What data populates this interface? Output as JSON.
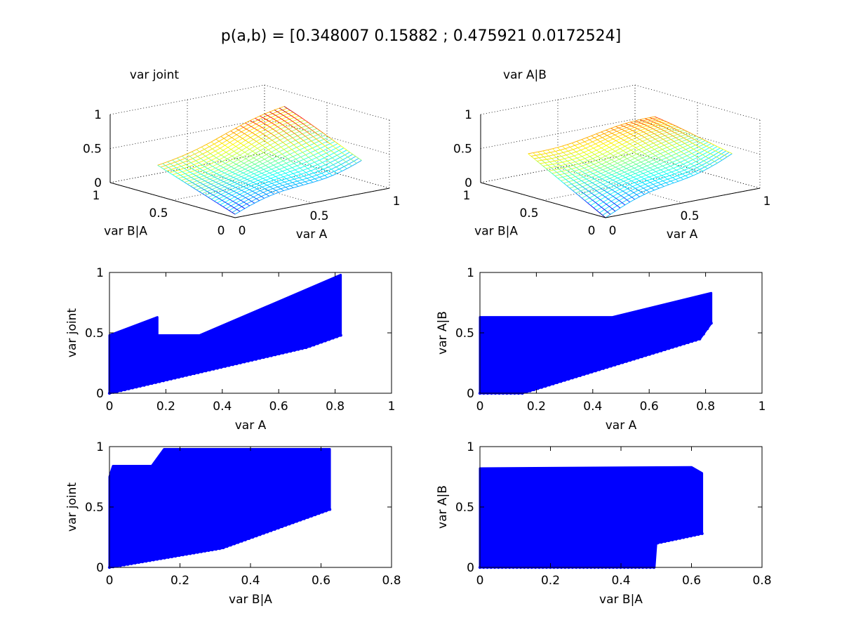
{
  "figure": {
    "suptitle": "p(a,b) = [0.348007 0.15882 ; 0.475921 0.0172524]"
  },
  "colors": {
    "scatter": "#0000ff",
    "axis": "#000000",
    "jet": [
      "#00008f",
      "#0000ff",
      "#00ffff",
      "#ffff00",
      "#ff0000",
      "#800000"
    ]
  },
  "chart_data": [
    {
      "id": "surf-joint",
      "type": "surface",
      "title": "var joint",
      "xlabel": "var A",
      "ylabel": "var B|A",
      "zlabel": "",
      "xlim": [
        0,
        1
      ],
      "ylim": [
        0,
        1
      ],
      "zlim": [
        0,
        1
      ],
      "xticks": [
        "0",
        "0.5",
        "1"
      ],
      "yticks": [
        "0",
        "0.5",
        "1"
      ],
      "zticks": [
        "0",
        "0.5",
        "1"
      ],
      "x_range": [
        0,
        0.82
      ],
      "y_range": [
        0,
        0.62
      ],
      "z_corners": {
        "x0y0": 0.05,
        "x1y0": 0.5,
        "x0y1": 0.45,
        "x1y1": 0.95
      },
      "colormap": "jet",
      "grid": true
    },
    {
      "id": "surf-cond",
      "type": "surface",
      "title": "var A|B",
      "xlabel": "var A",
      "ylabel": "var B|A",
      "zlabel": "",
      "xlim": [
        0,
        1
      ],
      "ylim": [
        0,
        1
      ],
      "zlim": [
        0,
        1
      ],
      "xticks": [
        "0",
        "0.5",
        "1"
      ],
      "yticks": [
        "0",
        "0.5",
        "1"
      ],
      "zticks": [
        "0",
        "0.5",
        "1"
      ],
      "x_range": [
        0,
        0.82
      ],
      "y_range": [
        0,
        0.62
      ],
      "z_corners": {
        "x0y0": 0.0,
        "x1y0": 0.6,
        "x0y1": 0.62,
        "x1y1": 0.8
      },
      "colormap": "jet",
      "grid": true
    },
    {
      "id": "scatter-joint-a",
      "type": "scatter",
      "title": "",
      "xlabel": "var A",
      "ylabel": "var joint",
      "xlim": [
        0,
        1
      ],
      "ylim": [
        0,
        1
      ],
      "xticks": [
        "0",
        "0.2",
        "0.4",
        "0.6",
        "0.8",
        "1"
      ],
      "yticks": [
        "0",
        "0.5",
        "1"
      ],
      "color": "#0000ff",
      "upper_envelope": [
        [
          0,
          0.48
        ],
        [
          0.17,
          0.63
        ],
        [
          0.17,
          0.48
        ],
        [
          0.32,
          0.48
        ],
        [
          0.82,
          0.98
        ]
      ],
      "lower_envelope": [
        [
          0,
          0.0
        ],
        [
          0.7,
          0.38
        ],
        [
          0.82,
          0.48
        ]
      ],
      "grid": false
    },
    {
      "id": "scatter-cond-a",
      "type": "scatter",
      "title": "",
      "xlabel": "var A",
      "ylabel": "var A|B",
      "xlim": [
        0,
        1
      ],
      "ylim": [
        0,
        1
      ],
      "xticks": [
        "0",
        "0.2",
        "0.4",
        "0.6",
        "0.8",
        "1"
      ],
      "yticks": [
        "0",
        "0.5",
        "1"
      ],
      "color": "#0000ff",
      "upper_envelope": [
        [
          0,
          0.63
        ],
        [
          0.47,
          0.63
        ],
        [
          0.82,
          0.83
        ]
      ],
      "lower_envelope": [
        [
          0,
          0.0
        ],
        [
          0.15,
          0.0
        ],
        [
          0.78,
          0.45
        ],
        [
          0.82,
          0.58
        ]
      ],
      "grid": false
    },
    {
      "id": "scatter-joint-b",
      "type": "scatter",
      "title": "",
      "xlabel": "var B|A",
      "ylabel": "var joint",
      "xlim": [
        0,
        0.8
      ],
      "ylim": [
        0,
        1
      ],
      "xticks": [
        "0",
        "0.2",
        "0.4",
        "0.6",
        "0.8"
      ],
      "yticks": [
        "0",
        "0.5",
        "1"
      ],
      "color": "#0000ff",
      "upper_envelope": [
        [
          0,
          0.75
        ],
        [
          0.01,
          0.84
        ],
        [
          0.12,
          0.84
        ],
        [
          0.155,
          0.98
        ],
        [
          0.625,
          0.98
        ]
      ],
      "lower_envelope": [
        [
          0,
          0.0
        ],
        [
          0.32,
          0.16
        ],
        [
          0.625,
          0.48
        ]
      ],
      "grid": false
    },
    {
      "id": "scatter-cond-b",
      "type": "scatter",
      "title": "",
      "xlabel": "var B|A",
      "ylabel": "var A|B",
      "xlim": [
        0,
        0.8
      ],
      "ylim": [
        0,
        1
      ],
      "xticks": [
        "0",
        "0.2",
        "0.4",
        "0.6",
        "0.8"
      ],
      "yticks": [
        "0",
        "0.5",
        "1"
      ],
      "color": "#0000ff",
      "upper_envelope": [
        [
          0,
          0.82
        ],
        [
          0.6,
          0.83
        ],
        [
          0.63,
          0.78
        ]
      ],
      "lower_envelope": [
        [
          0,
          0.0
        ],
        [
          0.495,
          0.0
        ],
        [
          0.5,
          0.2
        ],
        [
          0.63,
          0.28
        ]
      ],
      "grid": false
    }
  ]
}
